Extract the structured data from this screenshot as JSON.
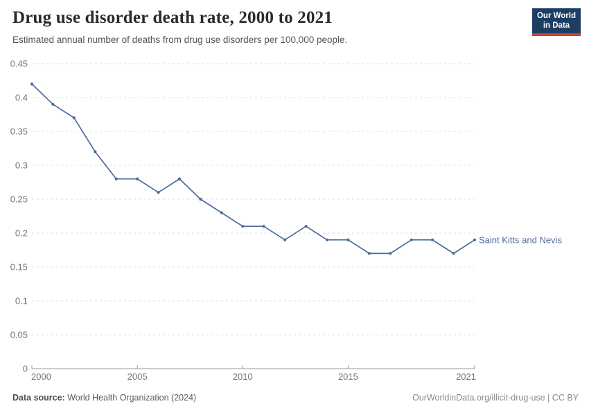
{
  "header": {
    "title": "Drug use disorder death rate, 2000 to 2021",
    "subtitle": "Estimated annual number of deaths from drug use disorders per 100,000 people."
  },
  "logo": {
    "line1": "Our World",
    "line2": "in Data",
    "bg_color": "#1d3d63",
    "bar_color": "#cf3b32"
  },
  "chart_data": {
    "type": "line",
    "title": "Drug use disorder death rate, 2000 to 2021",
    "xlabel": "",
    "ylabel": "",
    "x": [
      2000,
      2001,
      2002,
      2003,
      2004,
      2005,
      2006,
      2007,
      2008,
      2009,
      2010,
      2011,
      2012,
      2013,
      2014,
      2015,
      2016,
      2017,
      2018,
      2019,
      2020,
      2021
    ],
    "series": [
      {
        "name": "Saint Kitts and Nevis",
        "values": [
          0.42,
          0.39,
          0.37,
          0.32,
          0.28,
          0.28,
          0.26,
          0.28,
          0.25,
          0.23,
          0.21,
          0.21,
          0.19,
          0.21,
          0.19,
          0.19,
          0.17,
          0.17,
          0.19,
          0.19,
          0.17,
          0.19
        ]
      }
    ],
    "xlim": [
      2000,
      2021
    ],
    "ylim": [
      0,
      0.45
    ],
    "yticks": [
      0,
      0.05,
      0.1,
      0.15,
      0.2,
      0.25,
      0.3,
      0.35,
      0.4,
      0.45
    ],
    "ytick_labels": [
      "0",
      "0.05",
      "0.1",
      "0.15",
      "0.2",
      "0.25",
      "0.3",
      "0.35",
      "0.4",
      "0.45"
    ],
    "xticks": [
      2000,
      2005,
      2010,
      2015,
      2021
    ],
    "grid": "horizontal-dashed",
    "legend_position": "right-of-line",
    "line_color": "#4c6a9c",
    "grid_color": "#dcdcdc",
    "axis_color": "#999999",
    "tick_label_color": "#737373"
  },
  "footer": {
    "source_label": "Data source:",
    "source_text": " World Health Organization (2024)",
    "credit": "OurWorldinData.org/illicit-drug-use | CC BY"
  }
}
